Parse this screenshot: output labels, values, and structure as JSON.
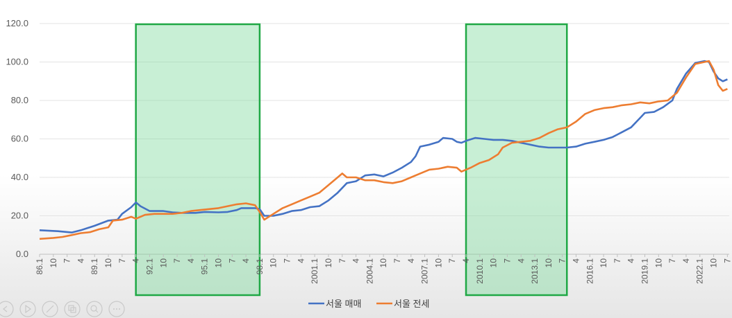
{
  "chart_data": {
    "type": "line",
    "ylim": [
      0,
      120
    ],
    "yticks": [
      "0.0",
      "20.0",
      "40.0",
      "60.0",
      "80.0",
      "100.0",
      "120.0"
    ],
    "x_tick_labels": [
      "86.1",
      "10",
      "7",
      "4",
      "89.1",
      "10",
      "7",
      "4",
      "92.1",
      "10",
      "7",
      "4",
      "95.1",
      "10",
      "7",
      "4",
      "98.1",
      "10",
      "7",
      "4",
      "2001.1",
      "10",
      "7",
      "4",
      "2004.1",
      "10",
      "7",
      "4",
      "2007.1",
      "10",
      "7",
      "4",
      "2010.1",
      "10",
      "7",
      "4",
      "2013.1",
      "10",
      "7",
      "4",
      "2016.1",
      "10",
      "7",
      "4",
      "2019.1",
      "10",
      "7",
      "4",
      "2022.1",
      "10",
      "7"
    ],
    "highlight_ranges": [
      [
        "1991.4",
        "1998.1"
      ],
      [
        "2009.4",
        "2014.10"
      ]
    ],
    "legend_position": "bottom",
    "grid": true,
    "series": [
      {
        "name": "서울 매매",
        "color": "#4472c4",
        "points": [
          [
            "86.1",
            12.5
          ],
          [
            "87.1",
            12.0
          ],
          [
            "87.10",
            11.3
          ],
          [
            "88.4",
            12.5
          ],
          [
            "89.1",
            14.8
          ],
          [
            "89.10",
            17.5
          ],
          [
            "90.4",
            18.0
          ],
          [
            "90.7",
            21.0
          ],
          [
            "91.1",
            24.5
          ],
          [
            "91.4",
            27.0
          ],
          [
            "91.7",
            25.0
          ],
          [
            "92.1",
            22.5
          ],
          [
            "92.10",
            22.5
          ],
          [
            "93.4",
            21.8
          ],
          [
            "93.10",
            21.5
          ],
          [
            "94.7",
            21.5
          ],
          [
            "95.1",
            22.0
          ],
          [
            "95.10",
            21.8
          ],
          [
            "96.4",
            22.0
          ],
          [
            "96.10",
            23.0
          ],
          [
            "97.1",
            24.0
          ],
          [
            "97.10",
            24.0
          ],
          [
            "98.1",
            23.5
          ],
          [
            "98.4",
            20.0
          ],
          [
            "98.10",
            20.0
          ],
          [
            "99.4",
            21.0
          ],
          [
            "99.10",
            22.5
          ],
          [
            "2000.4",
            23.0
          ],
          [
            "2000.10",
            24.5
          ],
          [
            "2001.4",
            25.0
          ],
          [
            "2001.10",
            28.0
          ],
          [
            "2002.4",
            32.0
          ],
          [
            "2002.10",
            37.0
          ],
          [
            "2003.4",
            38.0
          ],
          [
            "2003.10",
            41.0
          ],
          [
            "2004.4",
            41.5
          ],
          [
            "2004.10",
            40.5
          ],
          [
            "2005.4",
            42.5
          ],
          [
            "2005.10",
            45.0
          ],
          [
            "2006.4",
            48.0
          ],
          [
            "2006.7",
            51.0
          ],
          [
            "2006.10",
            56.0
          ],
          [
            "2007.4",
            57.0
          ],
          [
            "2007.10",
            58.5
          ],
          [
            "2008.1",
            60.5
          ],
          [
            "2008.7",
            60.0
          ],
          [
            "2008.10",
            58.5
          ],
          [
            "2009.1",
            58.0
          ],
          [
            "2009.4",
            59.0
          ],
          [
            "2009.10",
            60.5
          ],
          [
            "2010.4",
            60.0
          ],
          [
            "2010.10",
            59.5
          ],
          [
            "2011.4",
            59.5
          ],
          [
            "2011.10",
            59.0
          ],
          [
            "2012.4",
            58.0
          ],
          [
            "2012.10",
            57.0
          ],
          [
            "2013.4",
            56.0
          ],
          [
            "2013.10",
            55.5
          ],
          [
            "2014.4",
            55.5
          ],
          [
            "2014.10",
            55.5
          ],
          [
            "2015.4",
            56.0
          ],
          [
            "2015.10",
            57.5
          ],
          [
            "2016.4",
            58.5
          ],
          [
            "2016.10",
            59.5
          ],
          [
            "2017.4",
            61.0
          ],
          [
            "2017.10",
            63.5
          ],
          [
            "2018.4",
            66.0
          ],
          [
            "2018.10",
            71.0
          ],
          [
            "2019.1",
            73.5
          ],
          [
            "2019.7",
            74.0
          ],
          [
            "2020.1",
            76.5
          ],
          [
            "2020.7",
            80.0
          ],
          [
            "2020.10",
            86.0
          ],
          [
            "2021.4",
            94.0
          ],
          [
            "2021.10",
            99.5
          ],
          [
            "2022.4",
            100.5
          ],
          [
            "2022.7",
            100.0
          ],
          [
            "2022.10",
            95.0
          ],
          [
            "2023.1",
            91.5
          ],
          [
            "2023.4",
            90.0
          ],
          [
            "2023.7",
            91.0
          ]
        ]
      },
      {
        "name": "서울 전세",
        "color": "#ed7d31",
        "points": [
          [
            "86.1",
            8.0
          ],
          [
            "86.10",
            8.5
          ],
          [
            "87.4",
            9.0
          ],
          [
            "87.10",
            10.0
          ],
          [
            "88.4",
            11.0
          ],
          [
            "88.10",
            11.5
          ],
          [
            "89.4",
            13.0
          ],
          [
            "89.10",
            14.0
          ],
          [
            "90.1",
            17.5
          ],
          [
            "90.7",
            18.0
          ],
          [
            "91.1",
            19.5
          ],
          [
            "91.4",
            18.5
          ],
          [
            "91.10",
            20.5
          ],
          [
            "92.4",
            21.0
          ],
          [
            "92.10",
            21.0
          ],
          [
            "93.4",
            21.0
          ],
          [
            "93.10",
            21.5
          ],
          [
            "94.4",
            22.5
          ],
          [
            "94.10",
            23.0
          ],
          [
            "95.4",
            23.5
          ],
          [
            "95.10",
            24.0
          ],
          [
            "96.4",
            25.0
          ],
          [
            "96.10",
            26.0
          ],
          [
            "97.4",
            26.5
          ],
          [
            "97.10",
            25.5
          ],
          [
            "98.1",
            22.0
          ],
          [
            "98.4",
            18.0
          ],
          [
            "98.10",
            21.0
          ],
          [
            "99.4",
            24.0
          ],
          [
            "99.10",
            26.0
          ],
          [
            "2000.4",
            28.0
          ],
          [
            "2000.10",
            30.0
          ],
          [
            "2001.4",
            32.0
          ],
          [
            "2001.10",
            36.0
          ],
          [
            "2002.4",
            40.0
          ],
          [
            "2002.7",
            42.0
          ],
          [
            "2002.10",
            40.0
          ],
          [
            "2003.4",
            40.0
          ],
          [
            "2003.10",
            38.5
          ],
          [
            "2004.4",
            38.5
          ],
          [
            "2004.10",
            37.5
          ],
          [
            "2005.4",
            37.0
          ],
          [
            "2005.10",
            38.0
          ],
          [
            "2006.4",
            40.0
          ],
          [
            "2006.10",
            42.0
          ],
          [
            "2007.4",
            44.0
          ],
          [
            "2007.10",
            44.5
          ],
          [
            "2008.4",
            45.5
          ],
          [
            "2008.10",
            45.0
          ],
          [
            "2009.1",
            43.0
          ],
          [
            "2009.7",
            45.0
          ],
          [
            "2010.1",
            47.5
          ],
          [
            "2010.7",
            49.0
          ],
          [
            "2011.1",
            52.0
          ],
          [
            "2011.4",
            55.5
          ],
          [
            "2011.10",
            58.0
          ],
          [
            "2012.4",
            58.5
          ],
          [
            "2012.10",
            59.0
          ],
          [
            "2013.4",
            60.5
          ],
          [
            "2013.10",
            63.0
          ],
          [
            "2014.4",
            65.0
          ],
          [
            "2014.10",
            66.0
          ],
          [
            "2015.4",
            69.0
          ],
          [
            "2015.10",
            73.0
          ],
          [
            "2016.4",
            75.0
          ],
          [
            "2016.10",
            76.0
          ],
          [
            "2017.4",
            76.5
          ],
          [
            "2017.10",
            77.5
          ],
          [
            "2018.4",
            78.0
          ],
          [
            "2018.10",
            79.0
          ],
          [
            "2019.4",
            78.5
          ],
          [
            "2019.10",
            79.5
          ],
          [
            "2020.4",
            80.0
          ],
          [
            "2020.10",
            84.0
          ],
          [
            "2021.4",
            92.0
          ],
          [
            "2021.10",
            99.0
          ],
          [
            "2022.4",
            100.0
          ],
          [
            "2022.7",
            100.5
          ],
          [
            "2022.10",
            96.0
          ],
          [
            "2023.1",
            88.0
          ],
          [
            "2023.4",
            85.0
          ],
          [
            "2023.7",
            86.0
          ]
        ]
      }
    ]
  },
  "toolbar": {
    "icons": [
      "prev-icon",
      "play-icon",
      "pen-icon",
      "copy-icon",
      "zoom-icon",
      "more-icon"
    ]
  }
}
